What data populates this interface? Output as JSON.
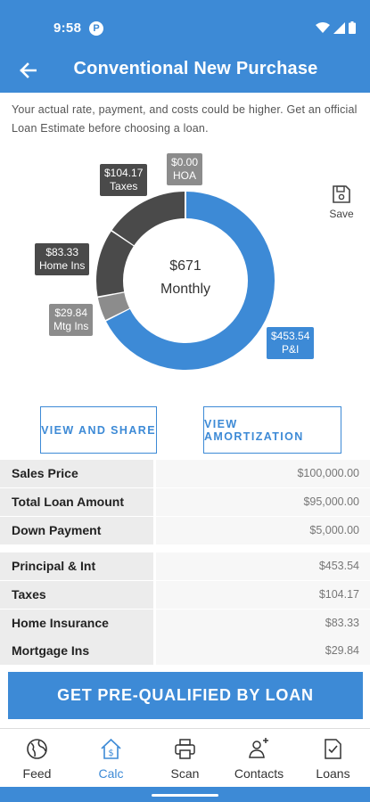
{
  "status_bar": {
    "time": "9:58",
    "notif_letter": "P"
  },
  "header": {
    "title": "Conventional New Purchase"
  },
  "disclaimer": "Your actual rate, payment, and costs could be higher. Get an official Loan Estimate before choosing a loan.",
  "chart_data": {
    "type": "pie",
    "style": "donut",
    "center_amount": "$671",
    "center_label": "Monthly",
    "slices": [
      {
        "amount": "$453.54",
        "name": "P&I",
        "value": 453.54,
        "color": "#3d8ad6"
      },
      {
        "amount": "$29.84",
        "name": "Mtg Ins",
        "value": 29.84,
        "color": "#8c8c8c"
      },
      {
        "amount": "$83.33",
        "name": "Home Ins",
        "value": 83.33,
        "color": "#4a4a4a"
      },
      {
        "amount": "$104.17",
        "name": "Taxes",
        "value": 104.17,
        "color": "#4a4a4a"
      },
      {
        "amount": "$0.00",
        "name": "HOA",
        "value": 0.0,
        "color": "#8c8c8c"
      }
    ]
  },
  "save": {
    "label": "Save",
    "icon": "floppy-disk-icon"
  },
  "buttons": {
    "view_share": "VIEW AND SHARE",
    "view_amortization": "VIEW AMORTIZATION"
  },
  "loan_summary": [
    {
      "label": "Sales Price",
      "value": "$100,000.00"
    },
    {
      "label": "Total Loan Amount",
      "value": "$95,000.00"
    },
    {
      "label": "Down Payment",
      "value": "$5,000.00"
    }
  ],
  "payment_breakdown": [
    {
      "label": "Principal & Int",
      "value": "$453.54"
    },
    {
      "label": "Taxes",
      "value": "$104.17"
    },
    {
      "label": "Home Insurance",
      "value": "$83.33"
    },
    {
      "label": "Mortgage Ins",
      "value": "$29.84"
    }
  ],
  "cta": "GET PRE-QUALIFIED BY LOAN",
  "nav": [
    {
      "label": "Feed",
      "icon": "globe-icon"
    },
    {
      "label": "Calc",
      "icon": "calculator-house-icon",
      "active": true
    },
    {
      "label": "Scan",
      "icon": "printer-icon"
    },
    {
      "label": "Contacts",
      "icon": "contacts-icon"
    },
    {
      "label": "Loans",
      "icon": "document-check-icon"
    }
  ],
  "colors": {
    "accent": "#3d8ad6",
    "dark_slice": "#4a4a4a",
    "grey_slice": "#8c8c8c"
  }
}
